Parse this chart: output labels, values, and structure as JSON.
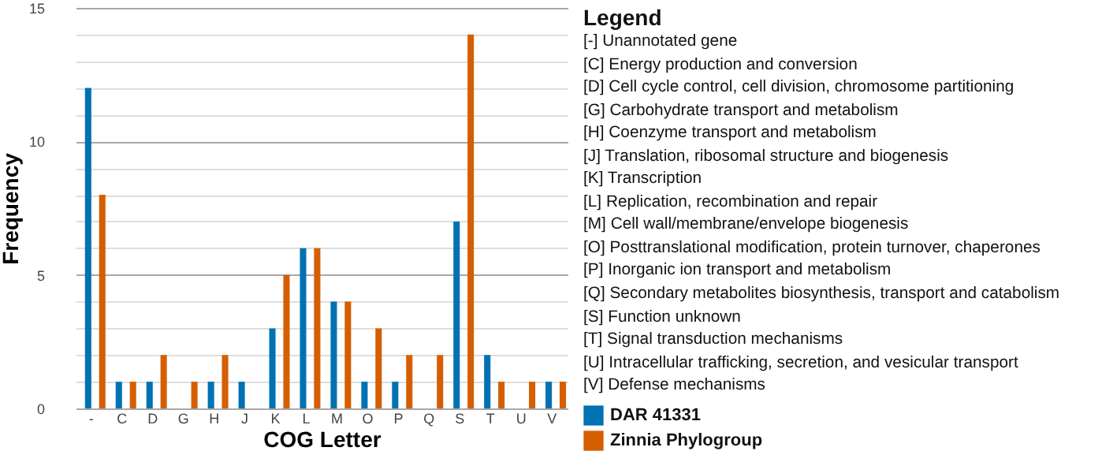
{
  "chart_data": {
    "type": "bar",
    "xlabel": "COG Letter",
    "ylabel": "Frequency",
    "legend_title": "Legend",
    "legend": "right",
    "grid": "y",
    "categories": [
      "-",
      "C",
      "D",
      "G",
      "H",
      "J",
      "K",
      "L",
      "M",
      "O",
      "P",
      "Q",
      "S",
      "T",
      "U",
      "V"
    ],
    "ylim": [
      0,
      15
    ],
    "yticks": [
      0,
      {
        "value": 1,
        "label": null
      },
      {
        "value": 2,
        "label": null
      },
      {
        "value": 3,
        "label": null
      },
      {
        "value": 4,
        "label": null
      },
      5,
      {
        "value": 6,
        "label": null
      },
      {
        "value": 7,
        "label": null
      },
      {
        "value": 8,
        "label": null
      },
      {
        "value": 9,
        "label": null
      },
      10,
      {
        "value": 11,
        "label": null
      },
      {
        "value": 12,
        "label": null
      },
      {
        "value": 13,
        "label": null
      },
      {
        "value": 14,
        "label": null
      },
      15
    ],
    "series": [
      {
        "name": "DAR 41331",
        "color": "#0072b2",
        "values": [
          12,
          1,
          1,
          0,
          1,
          1,
          3,
          6,
          4,
          1,
          1,
          0,
          7,
          2,
          0,
          1
        ]
      },
      {
        "name": "Zinnia Phylogroup",
        "color": "#d55e00",
        "values": [
          8,
          1,
          2,
          1,
          2,
          0,
          5,
          6,
          4,
          3,
          2,
          2,
          14,
          1,
          1,
          1
        ]
      }
    ],
    "annotations": [
      "[-] Unannotated gene",
      "[C] Energy production and conversion",
      "[D] Cell cycle control, cell division, chromosome partitioning",
      "[G] Carbohydrate transport and metabolism",
      "[H] Coenzyme transport and metabolism",
      "[J] Translation, ribosomal structure and biogenesis",
      "[K] Transcription",
      "[L] Replication, recombination and repair",
      "[M] Cell wall/membrane/envelope biogenesis",
      "[O] Posttranslational modification, protein turnover, chaperones",
      "[P] Inorganic ion transport and metabolism",
      "[Q] Secondary metabolites biosynthesis, transport and catabolism",
      "[S] Function unknown",
      "[T] Signal transduction mechanisms",
      "[U] Intracellular trafficking, secretion, and vesicular transport",
      "[V] Defense mechanisms"
    ]
  }
}
